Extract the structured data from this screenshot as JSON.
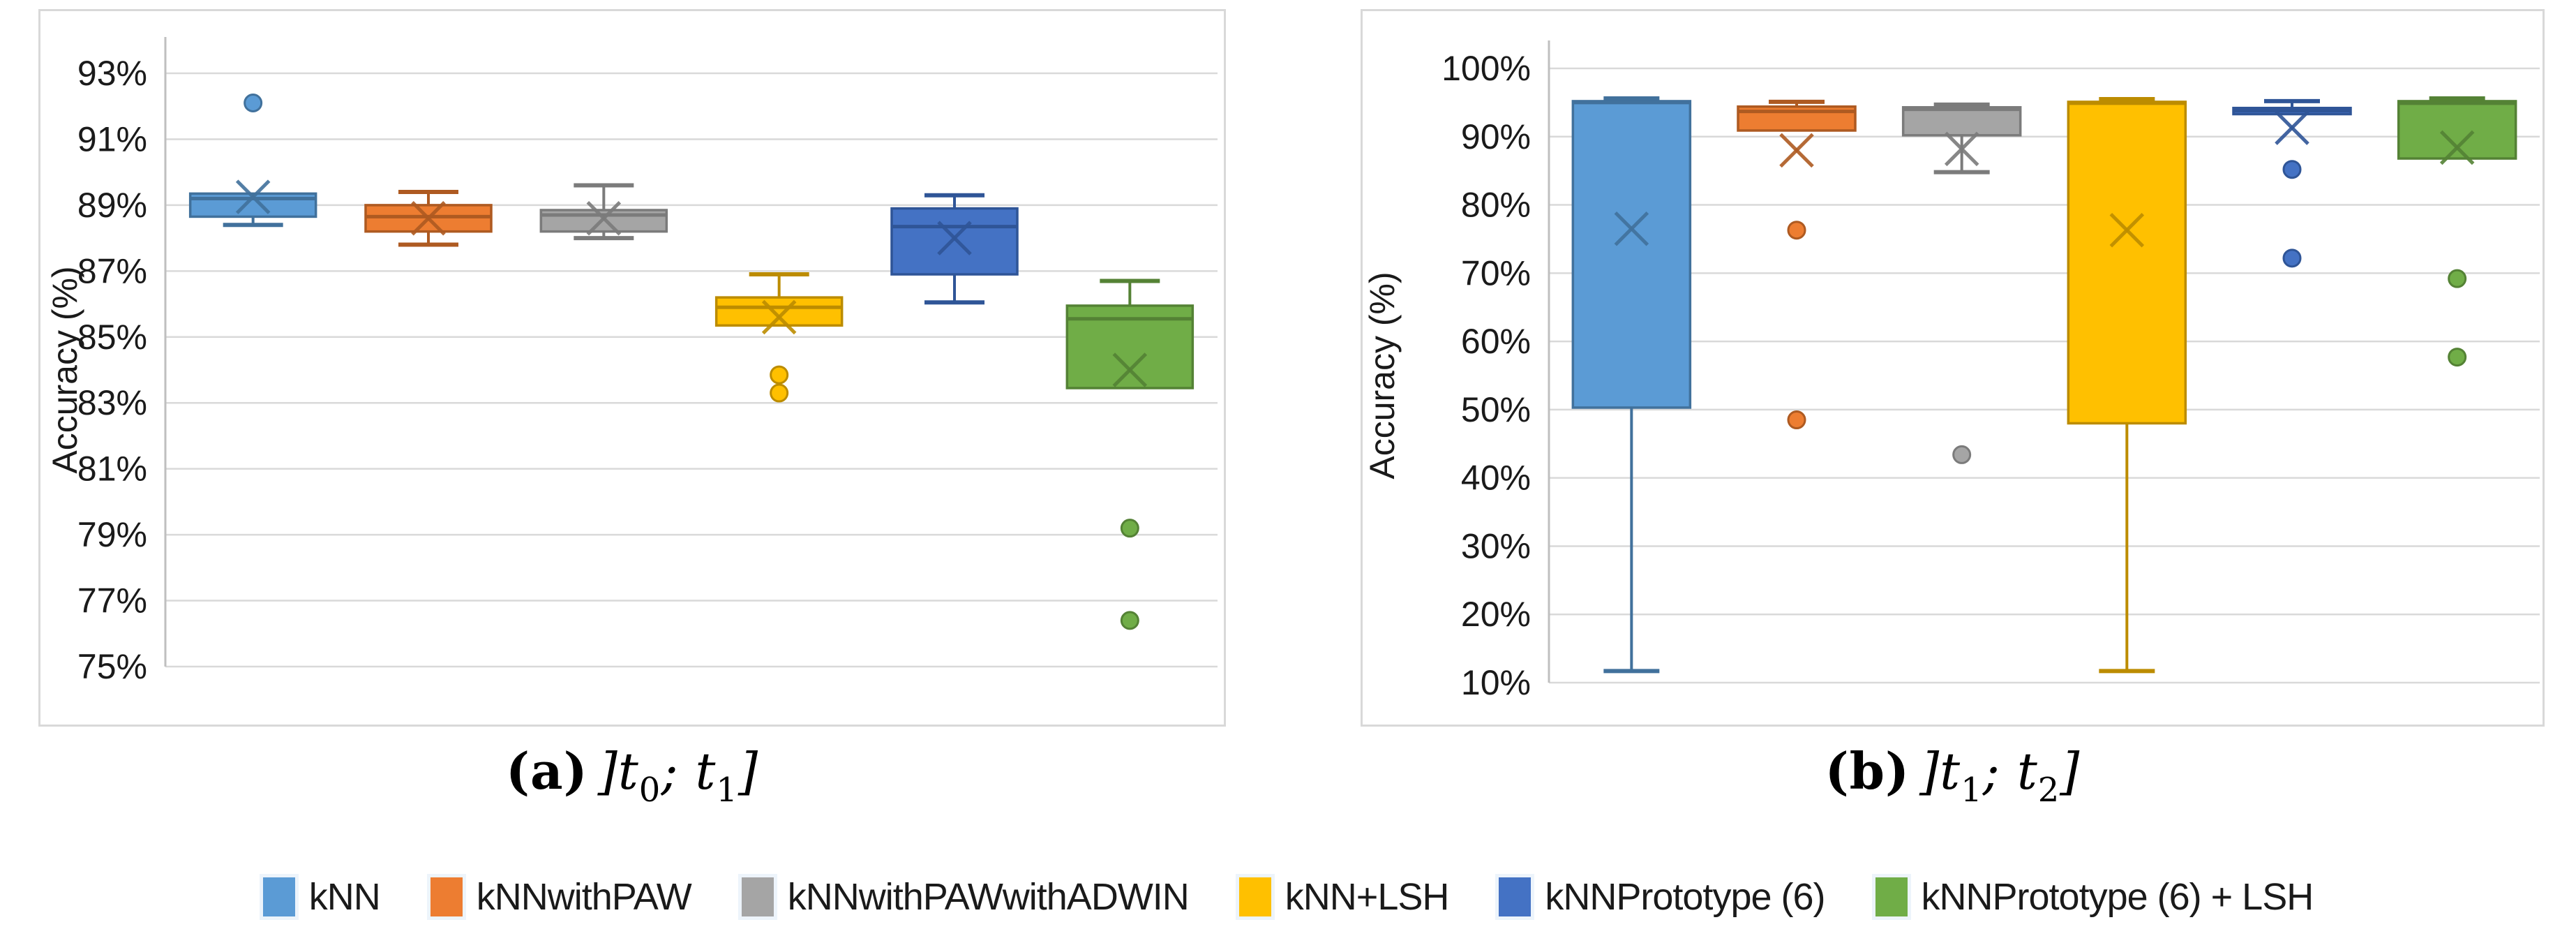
{
  "ui": {
    "captions": {
      "a": {
        "label": "(a)",
        "pre": "]t",
        "sub1": "0",
        "mid": "; t",
        "sub2": "1",
        "post": "]"
      },
      "b": {
        "label": "(b)",
        "pre": "]t",
        "sub1": "1",
        "mid": "; t",
        "sub2": "2",
        "post": "]"
      }
    },
    "legend": [
      {
        "label": "kNN",
        "color": "#5B9BD5",
        "border": "#41719C"
      },
      {
        "label": "kNNwithPAW",
        "color": "#ED7D31",
        "border": "#AE5A21"
      },
      {
        "label": "kNNwithPAWwithADWIN",
        "color": "#A5A5A5",
        "border": "#7B7B7B"
      },
      {
        "label": "kNN+LSH",
        "color": "#FFC000",
        "border": "#BC8C00"
      },
      {
        "label": "kNNPrototype (6)",
        "color": "#4472C4",
        "border": "#2F5597"
      },
      {
        "label": "kNNPrototype (6) + LSH",
        "color": "#70AD47",
        "border": "#548235"
      }
    ]
  },
  "chart_data": [
    {
      "type": "boxplot",
      "id": "a",
      "title": "(a) ]t0; t1]",
      "ylabel": "Accuracy (%)",
      "ylim": [
        75,
        93
      ],
      "yticks": [
        93,
        91,
        89,
        87,
        85,
        83,
        81,
        79,
        77,
        75
      ],
      "ytick_suffix": "%",
      "grid": true,
      "legend_position": "bottom-shared",
      "categories": [
        "kNN",
        "kNNwithPAW",
        "kNNwithPAWwithADWIN",
        "kNN+LSH",
        "kNNPrototype (6)",
        "kNNPrototype (6) + LSH"
      ],
      "series": [
        {
          "name": "kNN",
          "color": "#5B9BD5",
          "border": "#41719C",
          "whisker_low": 88.4,
          "q1": 88.65,
          "median": 89.2,
          "q3": 89.35,
          "whisker_high": null,
          "mean": 89.25,
          "outliers": [
            92.1
          ]
        },
        {
          "name": "kNNwithPAW",
          "color": "#ED7D31",
          "border": "#AE5A21",
          "whisker_low": 87.8,
          "q1": 88.2,
          "median": 88.65,
          "q3": 89.0,
          "whisker_high": 89.4,
          "mean": 88.6,
          "outliers": []
        },
        {
          "name": "kNNwithPAWwithADWIN",
          "color": "#A5A5A5",
          "border": "#7B7B7B",
          "whisker_low": 88.0,
          "q1": 88.2,
          "median": 88.7,
          "q3": 88.85,
          "whisker_high": 89.6,
          "mean": 88.6,
          "outliers": []
        },
        {
          "name": "kNN+LSH",
          "color": "#FFC000",
          "border": "#BC8C00",
          "whisker_low": null,
          "q1": 85.35,
          "median": 85.9,
          "q3": 86.2,
          "whisker_high": 86.9,
          "mean": 85.6,
          "outliers": [
            83.85,
            83.3
          ]
        },
        {
          "name": "kNNPrototype (6)",
          "color": "#4472C4",
          "border": "#2F5597",
          "whisker_low": 86.05,
          "q1": 86.9,
          "median": 88.35,
          "q3": 88.9,
          "whisker_high": 89.3,
          "mean": 88.0,
          "outliers": []
        },
        {
          "name": "kNNPrototype (6) + LSH",
          "color": "#70AD47",
          "border": "#548235",
          "whisker_low": null,
          "q1": 83.45,
          "median": 85.55,
          "q3": 85.95,
          "whisker_high": 86.7,
          "mean": 84.0,
          "outliers": [
            79.2,
            76.4
          ]
        }
      ]
    },
    {
      "type": "boxplot",
      "id": "b",
      "title": "(b) ]t1; t2]",
      "ylabel": "Accuracy (%)",
      "ylim": [
        10,
        100
      ],
      "yticks": [
        100,
        90,
        80,
        70,
        60,
        50,
        40,
        30,
        20,
        10
      ],
      "ytick_suffix": "%",
      "grid": true,
      "legend_position": "bottom-shared",
      "categories": [
        "kNN",
        "kNNwithPAW",
        "kNNwithPAWwithADWIN",
        "kNN+LSH",
        "kNNPrototype (6)",
        "kNNPrototype (6) + LSH"
      ],
      "series": [
        {
          "name": "kNN",
          "color": "#5B9BD5",
          "border": "#41719C",
          "whisker_low": 11.7,
          "q1": 50.3,
          "median": 95.0,
          "q3": 95.2,
          "whisker_high": 95.6,
          "mean": 76.5,
          "outliers": []
        },
        {
          "name": "kNNwithPAW",
          "color": "#ED7D31",
          "border": "#AE5A21",
          "whisker_low": null,
          "q1": 90.9,
          "median": 93.7,
          "q3": 94.4,
          "whisker_high": 95.1,
          "mean": 88.0,
          "outliers": [
            76.3,
            48.5
          ]
        },
        {
          "name": "kNNwithPAWwithADWIN",
          "color": "#A5A5A5",
          "border": "#7B7B7B",
          "whisker_low": 84.8,
          "q1": 90.2,
          "median": 94.0,
          "q3": 94.3,
          "whisker_high": 94.7,
          "mean": 88.2,
          "outliers": [
            43.4
          ]
        },
        {
          "name": "kNN+LSH",
          "color": "#FFC000",
          "border": "#BC8C00",
          "whisker_low": 11.7,
          "q1": 48.0,
          "median": 94.9,
          "q3": 95.1,
          "whisker_high": 95.5,
          "mean": 76.3,
          "outliers": []
        },
        {
          "name": "kNNPrototype (6)",
          "color": "#4472C4",
          "border": "#2F5597",
          "whisker_low": null,
          "q1": 93.3,
          "median": 93.8,
          "q3": 94.2,
          "whisker_high": 95.2,
          "mean": 91.3,
          "outliers": [
            85.2,
            72.2
          ]
        },
        {
          "name": "kNNPrototype (6) + LSH",
          "color": "#70AD47",
          "border": "#548235",
          "whisker_low": null,
          "q1": 86.8,
          "median": 94.9,
          "q3": 95.2,
          "whisker_high": 95.6,
          "mean": 88.4,
          "outliers": [
            69.2,
            57.7
          ]
        }
      ]
    }
  ]
}
